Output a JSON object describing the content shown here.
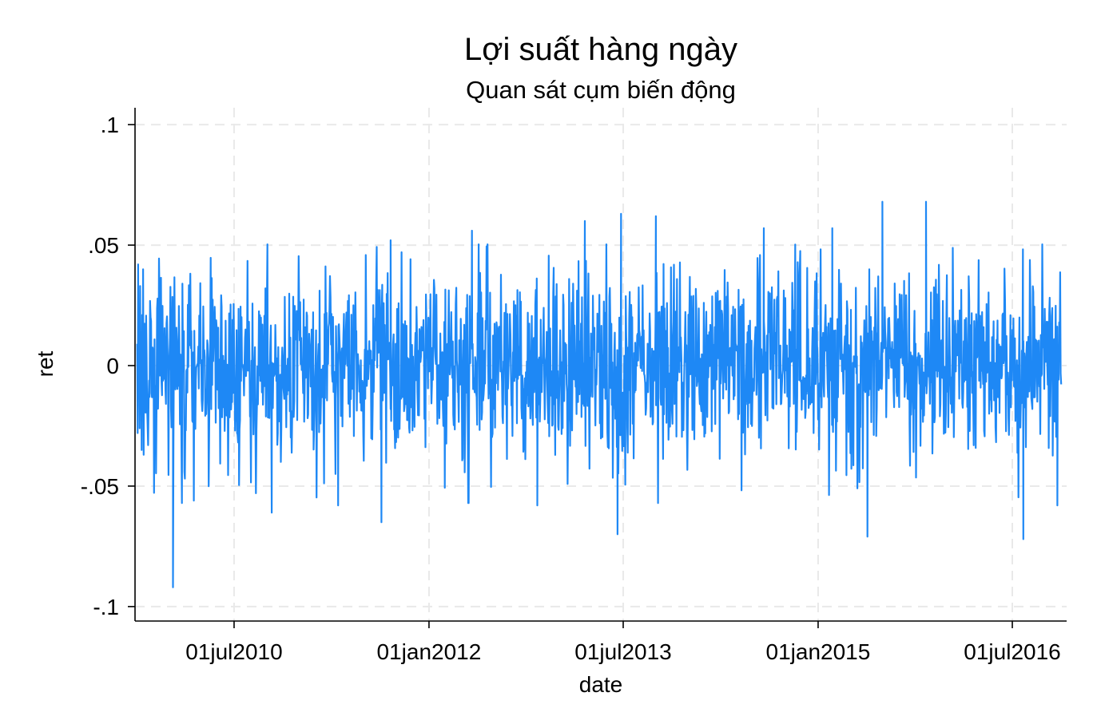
{
  "chart_data": {
    "type": "line",
    "title": "Lợi suất hàng ngày",
    "subtitle": "Quan sát cụm biến động",
    "xlabel": "date",
    "ylabel": "ret",
    "x_ticks": [
      {
        "date": "2010-07-01",
        "label": "01jul2010"
      },
      {
        "date": "2012-01-01",
        "label": "01jan2012"
      },
      {
        "date": "2013-07-01",
        "label": "01jul2013"
      },
      {
        "date": "2015-01-01",
        "label": "01jan2015"
      },
      {
        "date": "2016-07-01",
        "label": "01jul2016"
      }
    ],
    "y_ticks": [
      {
        "value": -0.1,
        "label": "-.1"
      },
      {
        "value": -0.05,
        "label": "-.05"
      },
      {
        "value": 0,
        "label": "0"
      },
      {
        "value": 0.05,
        "label": ".05"
      },
      {
        "value": 0.1,
        "label": ".1"
      }
    ],
    "xlim": [
      "2009-09-25",
      "2016-12-01"
    ],
    "ylim": [
      -0.106,
      0.107
    ],
    "grid": true,
    "legend": "none",
    "colors": {
      "series": "#1e88f5",
      "grid": "#e9e9e9",
      "axis": "#000000"
    },
    "series": [
      {
        "x_start": "2009-10-01",
        "x_end": "2016-11-16",
        "y_initial": [
          0.009,
          -0.028,
          0.042,
          -0.012,
          0.018,
          -0.026,
          0.033,
          -0.02,
          0.011,
          -0.035,
          0.021,
          -0.015,
          0.04,
          -0.037,
          0.014
        ],
        "y_summary": {
          "min": -0.092,
          "max": 0.068,
          "typical_range": [
            -0.03,
            0.03
          ]
        },
        "notable_points": [
          {
            "x": "2010-01-10",
            "y": -0.092
          },
          {
            "x": "2010-10-15",
            "y": -0.061
          },
          {
            "x": "2011-04-20",
            "y": -0.058
          },
          {
            "x": "2011-08-20",
            "y": -0.065
          },
          {
            "x": "2011-09-15",
            "y": 0.052
          },
          {
            "x": "2012-05-01",
            "y": 0.056
          },
          {
            "x": "2012-11-01",
            "y": -0.058
          },
          {
            "x": "2013-03-15",
            "y": 0.06
          },
          {
            "x": "2013-06-15",
            "y": -0.07
          },
          {
            "x": "2013-06-25",
            "y": 0.063
          },
          {
            "x": "2013-10-01",
            "y": 0.062
          },
          {
            "x": "2014-08-01",
            "y": 0.057
          },
          {
            "x": "2015-02-10",
            "y": 0.057
          },
          {
            "x": "2015-05-20",
            "y": -0.071
          },
          {
            "x": "2015-07-01",
            "y": 0.068
          },
          {
            "x": "2015-11-01",
            "y": 0.068
          },
          {
            "x": "2016-08-01",
            "y": -0.072
          },
          {
            "x": "2016-11-05",
            "y": -0.058
          }
        ]
      }
    ]
  }
}
